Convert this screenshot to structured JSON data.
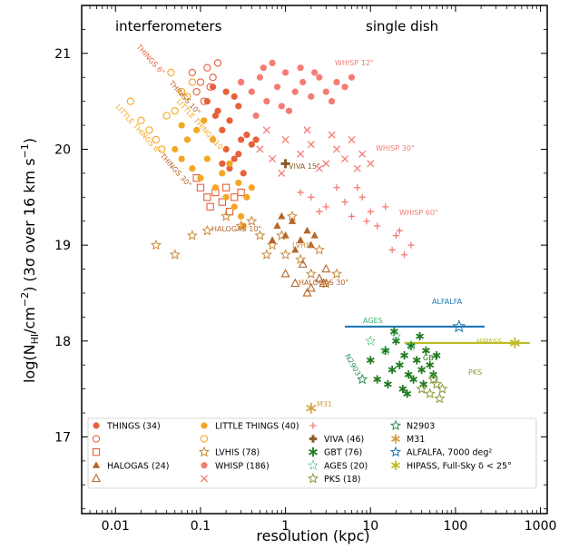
{
  "chart_data": {
    "type": "scatter",
    "title": "",
    "xlabel": "resolution (kpc)",
    "ylabel_parts": [
      "log(N",
      "HI",
      "/cm",
      "−2",
      ") (3σ over 16 km s",
      "−1",
      ")"
    ],
    "xscale": "log",
    "xlim": [
      0.004,
      1200
    ],
    "ylim": [
      16.2,
      21.5
    ],
    "xticks": [
      0.01,
      0.1,
      1,
      10,
      100,
      1000
    ],
    "xtick_labels": [
      "0.01",
      "0.1",
      "1",
      "10",
      "100",
      "1000"
    ],
    "yticks": [
      17,
      18,
      19,
      20,
      21
    ],
    "ytick_labels": [
      "17",
      "18",
      "19",
      "20",
      "21"
    ],
    "grid": false,
    "legend_position": "bottom",
    "annotations": {
      "interferometers": "interferometers",
      "single_dish": "single dish",
      "things6": "THINGS 6\"",
      "things10": "THINGS 10\"",
      "things30": "THINGS 30\"",
      "lt6": "LITTLE THINGS 6\"",
      "lt10": "LITTLE THINGS 10\"",
      "whisp12": "WHISP 12\"",
      "whisp30": "WHISP 30\"",
      "whisp60": "WHISP 60\"",
      "viva15": "VIVA 15\"",
      "halogas10": "HALOGAS 10\"",
      "lvhis": "LVHIS",
      "halogas30": "HALOGAS 30\"",
      "alfalfa": "ALFALFA",
      "ages": "AGES",
      "n2903": "N2903",
      "gbt": "GBT",
      "pks": "PKS",
      "hipass": "HIPASS",
      "m31": "M31"
    },
    "colors": {
      "things": "#e8603c",
      "little_things": "#f5a623",
      "halogas": "#b5652a",
      "lvhis": "#c98a3a",
      "whisp": "#f47c74",
      "viva": "#8b5a2b",
      "gbt": "#1f7a1f",
      "ages": "#3cb371",
      "pks": "#8a9a3a",
      "n2903": "#2e8b57",
      "m31": "#d4a040",
      "alfalfa": "#1f77b4",
      "hipass": "#bcbd22"
    },
    "legend": [
      {
        "label": "THINGS (34)",
        "marker": "filled-circle",
        "color": "#e8603c"
      },
      {
        "label": "",
        "marker": "open-circle",
        "color": "#e8603c"
      },
      {
        "label": "",
        "marker": "open-square",
        "color": "#e8603c"
      },
      {
        "label": "HALOGAS (24)",
        "marker": "filled-triangle",
        "color": "#b5652a"
      },
      {
        "label": "",
        "marker": "open-triangle",
        "color": "#b5652a"
      },
      {
        "label": "LITTLE THINGS (40)",
        "marker": "filled-circle",
        "color": "#f5a623"
      },
      {
        "label": "",
        "marker": "open-circle",
        "color": "#f5a623"
      },
      {
        "label": "LVHIS (78)",
        "marker": "open-star",
        "color": "#c98a3a"
      },
      {
        "label": "WHISP (186)",
        "marker": "filled-circle",
        "color": "#f47c74"
      },
      {
        "label": "",
        "marker": "cross-x",
        "color": "#f47c74"
      },
      {
        "label": "",
        "marker": "plus",
        "color": "#f47c74"
      },
      {
        "label": "VIVA (46)",
        "marker": "thick-plus",
        "color": "#8b5a2b"
      },
      {
        "label": "GBT (76)",
        "marker": "asterisk",
        "color": "#1f7a1f"
      },
      {
        "label": "AGES (20)",
        "marker": "dotted-star",
        "color": "#3cb371"
      },
      {
        "label": "PKS (18)",
        "marker": "open-star",
        "color": "#8a9a3a"
      },
      {
        "label": "N2903",
        "marker": "open-star",
        "color": "#2e8b57"
      },
      {
        "label": "M31",
        "marker": "asterisk",
        "color": "#d4a040"
      },
      {
        "label": "ALFALFA, 7000 deg²",
        "marker": "open-star",
        "color": "#1f77b4"
      },
      {
        "label": "HIPASS, Full-Sky δ < 25°",
        "marker": "asterisk",
        "color": "#bcbd22"
      }
    ],
    "series": [
      {
        "name": "THINGS (34)",
        "marker": "filled-circle",
        "color": "#e8603c",
        "points": [
          [
            0.12,
            20.5
          ],
          [
            0.14,
            20.65
          ],
          [
            0.16,
            20.4
          ],
          [
            0.2,
            20.6
          ],
          [
            0.22,
            20.3
          ],
          [
            0.25,
            20.55
          ],
          [
            0.28,
            20.45
          ],
          [
            0.18,
            20.2
          ],
          [
            0.3,
            20.7
          ],
          [
            0.15,
            20.35
          ]
        ]
      },
      {
        "name": "THINGS 10\"",
        "marker": "filled-circle",
        "color": "#e8603c",
        "points": [
          [
            0.2,
            20.0
          ],
          [
            0.25,
            19.9
          ],
          [
            0.3,
            20.1
          ],
          [
            0.22,
            19.8
          ],
          [
            0.35,
            20.15
          ],
          [
            0.28,
            19.95
          ],
          [
            0.4,
            20.05
          ],
          [
            0.18,
            19.85
          ],
          [
            0.32,
            19.75
          ],
          [
            0.45,
            20.1
          ]
        ]
      },
      {
        "name": "THINGS 30\"",
        "marker": "open-square",
        "color": "#e8603c",
        "points": [
          [
            0.1,
            19.6
          ],
          [
            0.12,
            19.5
          ],
          [
            0.15,
            19.55
          ],
          [
            0.18,
            19.45
          ],
          [
            0.2,
            19.6
          ],
          [
            0.25,
            19.5
          ],
          [
            0.13,
            19.4
          ],
          [
            0.22,
            19.35
          ],
          [
            0.3,
            19.55
          ],
          [
            0.09,
            19.7
          ]
        ]
      },
      {
        "name": "THINGS 6\" open",
        "marker": "open-circle",
        "color": "#e8603c",
        "points": [
          [
            0.08,
            20.8
          ],
          [
            0.1,
            20.7
          ],
          [
            0.12,
            20.85
          ],
          [
            0.09,
            20.6
          ],
          [
            0.11,
            20.5
          ],
          [
            0.14,
            20.75
          ],
          [
            0.16,
            20.9
          ],
          [
            0.13,
            20.65
          ]
        ]
      },
      {
        "name": "LITTLE THINGS (40)",
        "marker": "filled-circle",
        "color": "#f5a623",
        "points": [
          [
            0.05,
            20.0
          ],
          [
            0.06,
            19.9
          ],
          [
            0.07,
            20.1
          ],
          [
            0.08,
            19.8
          ],
          [
            0.1,
            19.7
          ],
          [
            0.12,
            19.9
          ],
          [
            0.15,
            19.6
          ],
          [
            0.18,
            19.75
          ],
          [
            0.2,
            19.5
          ],
          [
            0.25,
            19.4
          ],
          [
            0.3,
            19.3
          ],
          [
            0.35,
            19.5
          ],
          [
            0.4,
            19.6
          ],
          [
            0.09,
            20.2
          ],
          [
            0.11,
            20.3
          ],
          [
            0.14,
            20.1
          ],
          [
            0.22,
            19.85
          ],
          [
            0.28,
            19.65
          ],
          [
            0.32,
            19.2
          ],
          [
            0.06,
            20.25
          ]
        ]
      },
      {
        "name": "LITTLE THINGS 6\" open",
        "marker": "open-circle",
        "color": "#f5a623",
        "points": [
          [
            0.015,
            20.5
          ],
          [
            0.02,
            20.3
          ],
          [
            0.025,
            20.2
          ],
          [
            0.03,
            20.1
          ],
          [
            0.035,
            20.0
          ],
          [
            0.04,
            20.35
          ],
          [
            0.05,
            20.4
          ],
          [
            0.06,
            20.6
          ],
          [
            0.07,
            20.55
          ],
          [
            0.08,
            20.7
          ],
          [
            0.045,
            20.8
          ]
        ]
      },
      {
        "name": "LVHIS (78)",
        "marker": "open-star",
        "color": "#c98a3a",
        "points": [
          [
            0.03,
            19.0
          ],
          [
            0.05,
            18.9
          ],
          [
            0.08,
            19.1
          ],
          [
            0.12,
            19.15
          ],
          [
            0.2,
            19.3
          ],
          [
            0.3,
            19.2
          ],
          [
            0.5,
            19.1
          ],
          [
            0.7,
            19.0
          ],
          [
            1.0,
            18.9
          ],
          [
            1.5,
            18.85
          ],
          [
            2.0,
            18.7
          ],
          [
            3.0,
            18.6
          ],
          [
            0.6,
            18.9
          ],
          [
            0.4,
            19.25
          ],
          [
            0.9,
            19.1
          ],
          [
            1.2,
            19.3
          ],
          [
            2.5,
            18.95
          ],
          [
            4.0,
            18.7
          ]
        ]
      },
      {
        "name": "HALOGAS (24)",
        "marker": "filled-triangle",
        "color": "#b5652a",
        "points": [
          [
            0.8,
            19.2
          ],
          [
            1.0,
            19.1
          ],
          [
            1.2,
            19.25
          ],
          [
            1.5,
            19.05
          ],
          [
            1.8,
            19.15
          ],
          [
            2.0,
            19.0
          ],
          [
            0.9,
            19.3
          ],
          [
            1.3,
            18.95
          ],
          [
            2.2,
            19.1
          ],
          [
            0.7,
            19.05
          ]
        ]
      },
      {
        "name": "HALOGAS 30\"",
        "marker": "open-triangle",
        "color": "#b5652a",
        "points": [
          [
            1.0,
            18.7
          ],
          [
            1.3,
            18.6
          ],
          [
            1.6,
            18.8
          ],
          [
            2.0,
            18.55
          ],
          [
            2.5,
            18.65
          ],
          [
            3.0,
            18.75
          ],
          [
            1.8,
            18.5
          ],
          [
            2.8,
            18.6
          ]
        ]
      },
      {
        "name": "WHISP (186)",
        "marker": "filled-circle",
        "color": "#f47c74",
        "points": [
          [
            0.3,
            20.7
          ],
          [
            0.4,
            20.6
          ],
          [
            0.5,
            20.75
          ],
          [
            0.6,
            20.5
          ],
          [
            0.8,
            20.65
          ],
          [
            1.0,
            20.8
          ],
          [
            1.3,
            20.6
          ],
          [
            1.6,
            20.7
          ],
          [
            2.0,
            20.55
          ],
          [
            2.5,
            20.75
          ],
          [
            3.0,
            20.6
          ],
          [
            4.0,
            20.7
          ],
          [
            5.0,
            20.65
          ],
          [
            6.0,
            20.75
          ],
          [
            0.7,
            20.9
          ],
          [
            0.9,
            20.45
          ],
          [
            1.1,
            20.4
          ],
          [
            1.5,
            20.85
          ],
          [
            2.2,
            20.8
          ],
          [
            3.5,
            20.5
          ],
          [
            0.45,
            20.35
          ],
          [
            0.55,
            20.85
          ]
        ]
      },
      {
        "name": "WHISP 30\"",
        "marker": "cross-x",
        "color": "#f47c74",
        "points": [
          [
            0.5,
            20.0
          ],
          [
            0.7,
            19.9
          ],
          [
            1.0,
            20.1
          ],
          [
            1.5,
            19.95
          ],
          [
            2.0,
            20.05
          ],
          [
            3.0,
            19.85
          ],
          [
            4.0,
            20.0
          ],
          [
            5.0,
            19.9
          ],
          [
            6.0,
            20.1
          ],
          [
            8.0,
            19.95
          ],
          [
            10.0,
            19.85
          ],
          [
            0.6,
            20.2
          ],
          [
            0.9,
            19.75
          ],
          [
            1.8,
            20.2
          ],
          [
            2.5,
            19.8
          ],
          [
            3.5,
            20.15
          ],
          [
            7.0,
            19.8
          ]
        ]
      },
      {
        "name": "WHISP 60\"",
        "marker": "plus",
        "color": "#f47c74",
        "points": [
          [
            2.0,
            19.5
          ],
          [
            3.0,
            19.4
          ],
          [
            4.0,
            19.6
          ],
          [
            5.0,
            19.45
          ],
          [
            6.0,
            19.3
          ],
          [
            8.0,
            19.5
          ],
          [
            10.0,
            19.35
          ],
          [
            12.0,
            19.2
          ],
          [
            15.0,
            19.4
          ],
          [
            20.0,
            19.1
          ],
          [
            25.0,
            18.9
          ],
          [
            30.0,
            19.0
          ],
          [
            1.5,
            19.55
          ],
          [
            2.5,
            19.35
          ],
          [
            7.0,
            19.6
          ],
          [
            18.0,
            18.95
          ],
          [
            22.0,
            19.15
          ],
          [
            9.0,
            19.25
          ]
        ]
      },
      {
        "name": "VIVA (46)",
        "marker": "thick-plus",
        "color": "#8b5a2b",
        "points": [
          [
            1.0,
            19.85
          ]
        ]
      },
      {
        "name": "GBT (76)",
        "marker": "asterisk",
        "color": "#1f7a1f",
        "points": [
          [
            10,
            17.8
          ],
          [
            12,
            17.6
          ],
          [
            15,
            17.9
          ],
          [
            18,
            17.7
          ],
          [
            20,
            18.0
          ],
          [
            22,
            17.75
          ],
          [
            25,
            17.85
          ],
          [
            28,
            17.65
          ],
          [
            30,
            17.95
          ],
          [
            35,
            17.8
          ],
          [
            40,
            17.7
          ],
          [
            45,
            17.9
          ],
          [
            50,
            17.75
          ],
          [
            60,
            17.85
          ],
          [
            16,
            17.55
          ],
          [
            24,
            17.5
          ],
          [
            32,
            17.6
          ],
          [
            38,
            18.05
          ],
          [
            55,
            17.65
          ],
          [
            27,
            17.45
          ],
          [
            19,
            18.1
          ],
          [
            42,
            17.55
          ]
        ]
      },
      {
        "name": "AGES (20)",
        "marker": "dotted-star",
        "color": "#3cb371",
        "points": [
          [
            10,
            18.0
          ],
          [
            15,
            17.9
          ],
          [
            20,
            18.05
          ],
          [
            30,
            17.95
          ]
        ]
      },
      {
        "name": "PKS (18)",
        "marker": "open-star",
        "color": "#8a9a3a",
        "points": [
          [
            40,
            17.5
          ],
          [
            50,
            17.45
          ],
          [
            60,
            17.55
          ],
          [
            70,
            17.5
          ],
          [
            55,
            17.6
          ],
          [
            65,
            17.4
          ]
        ]
      },
      {
        "name": "N2903",
        "marker": "open-star",
        "color": "#2e8b57",
        "points": [
          [
            8,
            17.6
          ]
        ]
      },
      {
        "name": "M31",
        "marker": "asterisk",
        "color": "#d4a040",
        "points": [
          [
            2.0,
            17.3
          ]
        ]
      },
      {
        "name": "ALFALFA, 7000 deg²",
        "marker": "open-star",
        "color": "#1f77b4",
        "points": [
          [
            110,
            18.15
          ]
        ]
      },
      {
        "name": "HIPASS, Full-Sky δ < 25°",
        "marker": "asterisk",
        "color": "#bcbd22",
        "points": [
          [
            500,
            17.98
          ]
        ]
      }
    ],
    "lines": [
      {
        "name": "ALFALFA",
        "color": "#1f77b4",
        "x": [
          5,
          220
        ],
        "y": [
          18.15,
          18.15
        ]
      },
      {
        "name": "HIPASS",
        "color": "#bcbd22",
        "x": [
          25,
          750
        ],
        "y": [
          17.98,
          17.98
        ]
      }
    ]
  }
}
